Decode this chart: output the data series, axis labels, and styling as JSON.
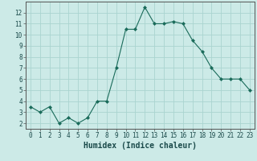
{
  "x": [
    0,
    1,
    2,
    3,
    4,
    5,
    6,
    7,
    8,
    9,
    10,
    11,
    12,
    13,
    14,
    15,
    16,
    17,
    18,
    19,
    20,
    21,
    22,
    23
  ],
  "y": [
    3.5,
    3.0,
    3.5,
    2.0,
    2.5,
    2.0,
    2.5,
    4.0,
    4.0,
    7.0,
    10.5,
    10.5,
    12.5,
    11.0,
    11.0,
    11.2,
    11.0,
    9.5,
    8.5,
    7.0,
    6.0,
    6.0,
    6.0,
    5.0
  ],
  "line_color": "#1a6b5a",
  "marker": "D",
  "marker_size": 2.0,
  "bg_color": "#cceae7",
  "grid_color": "#aad4d0",
  "xlabel": "Humidex (Indice chaleur)",
  "xlim": [
    -0.5,
    23.5
  ],
  "ylim": [
    1.5,
    13.0
  ],
  "yticks": [
    2,
    3,
    4,
    5,
    6,
    7,
    8,
    9,
    10,
    11,
    12
  ],
  "xticks": [
    0,
    1,
    2,
    3,
    4,
    5,
    6,
    7,
    8,
    9,
    10,
    11,
    12,
    13,
    14,
    15,
    16,
    17,
    18,
    19,
    20,
    21,
    22,
    23
  ],
  "tick_fontsize": 5.5,
  "xlabel_fontsize": 7.0,
  "line_width": 0.8
}
